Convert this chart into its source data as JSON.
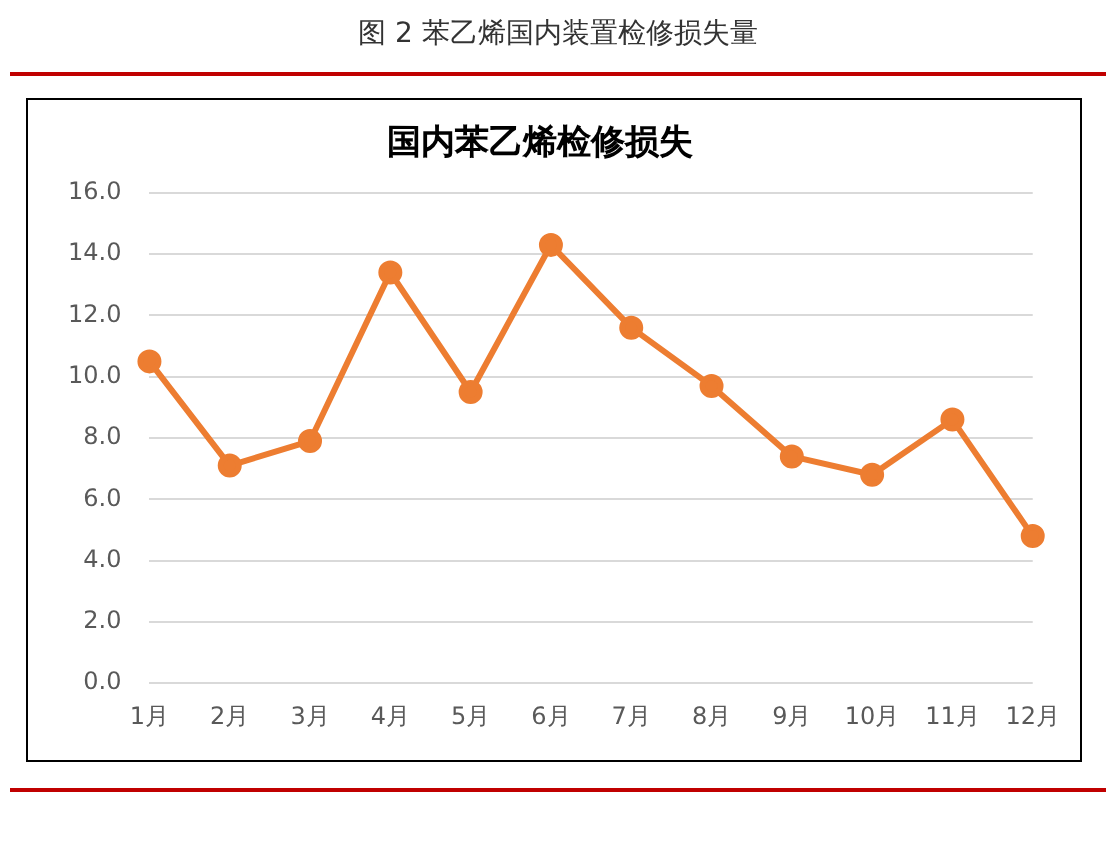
{
  "chart_data": {
    "type": "line",
    "title": "国内苯乙烯检修损失",
    "annotations": [
      "图 2 苯乙烯国内装置检修损失量"
    ],
    "categories": [
      "1月",
      "2月",
      "3月",
      "4月",
      "5月",
      "6月",
      "7月",
      "8月",
      "9月",
      "10月",
      "11月",
      "12月"
    ],
    "series": [
      {
        "color": "#ed7d31",
        "values": [
          10.5,
          7.1,
          7.9,
          13.4,
          9.5,
          14.3,
          11.6,
          9.7,
          7.4,
          6.8,
          8.6,
          4.8
        ]
      }
    ],
    "ylim": [
      0,
      16
    ],
    "yticks": [
      {
        "value": 0,
        "label": "0.0"
      },
      {
        "value": 2,
        "label": "2.0"
      },
      {
        "value": 4,
        "label": "4.0"
      },
      {
        "value": 6,
        "label": "6.0"
      },
      {
        "value": 8,
        "label": "8.0"
      },
      {
        "value": 10,
        "label": "10.0"
      },
      {
        "value": 12,
        "label": "12.0"
      },
      {
        "value": 14,
        "label": "14.0"
      },
      {
        "value": 16,
        "label": "16.0"
      }
    ],
    "grid": "y",
    "legend": false,
    "marker": "circle",
    "line_style": "solid"
  }
}
